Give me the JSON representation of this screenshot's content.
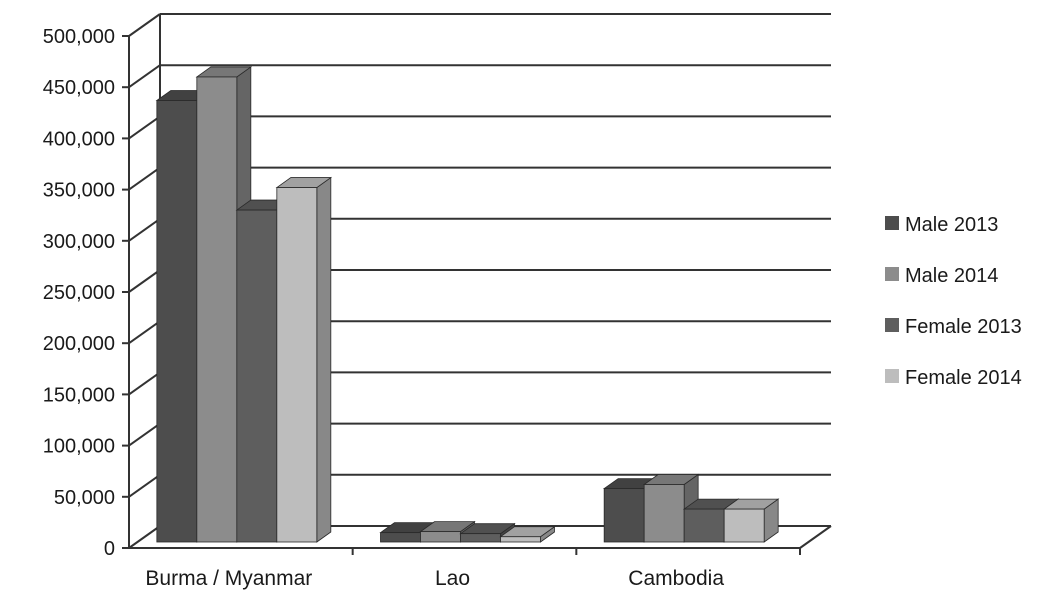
{
  "chart_data": {
    "type": "bar",
    "categories": [
      "Burma / Myanmar",
      "Lao",
      "Cambodia"
    ],
    "series": [
      {
        "name": "Male 2013",
        "values": [
          437000,
          15000,
          58000
        ],
        "color": "#4d4d4d"
      },
      {
        "name": "Male 2014",
        "values": [
          460000,
          16000,
          62000
        ],
        "color": "#8c8c8c"
      },
      {
        "name": "Female 2013",
        "values": [
          330000,
          14000,
          38000
        ],
        "color": "#5e5e5e"
      },
      {
        "name": "Female 2014",
        "values": [
          352000,
          11000,
          38000
        ],
        "color": "#bdbdbd"
      }
    ],
    "ylim": [
      0,
      500000
    ],
    "yticks": [
      "0",
      "50,000",
      "100,000",
      "150,000",
      "200,000",
      "250,000",
      "300,000",
      "350,000",
      "400,000",
      "450,000",
      "500,000"
    ],
    "grid": true,
    "three_d": true,
    "legend_position": "right"
  }
}
